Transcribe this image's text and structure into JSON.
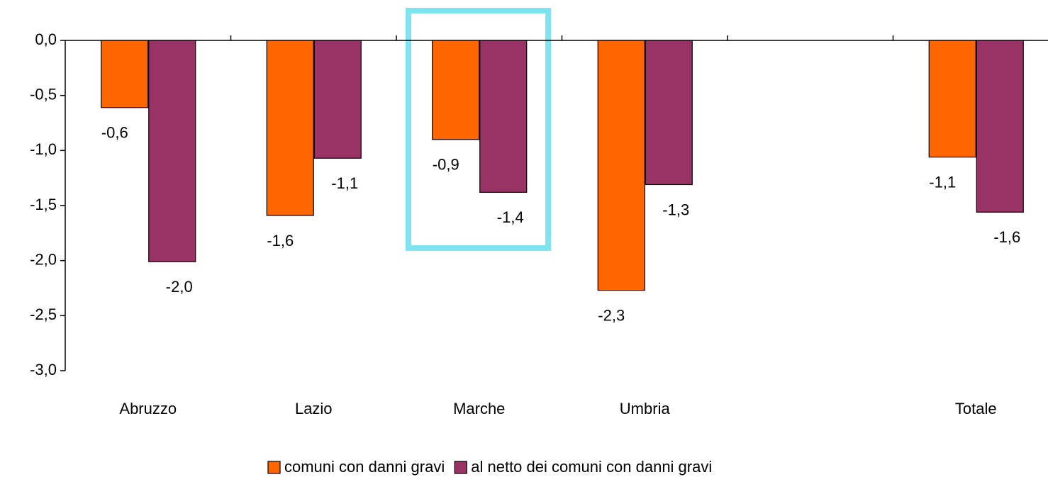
{
  "chart_data": {
    "type": "bar",
    "categories": [
      "Abruzzo",
      "Lazio",
      "Marche",
      "Umbria",
      null,
      "Totale"
    ],
    "series": [
      {
        "name": "comuni con danni gravi",
        "color": "#ff6600",
        "values": [
          -0.61,
          -1.59,
          -0.9,
          -2.27,
          null,
          -1.06
        ],
        "value_labels": [
          "-0,6",
          "-1,6",
          "-0,9",
          "-2,3",
          null,
          "-1,1"
        ]
      },
      {
        "name": "al netto dei comuni con danni gravi",
        "color": "#993366",
        "values": [
          -2.01,
          -1.07,
          -1.38,
          -1.31,
          null,
          -1.56
        ],
        "value_labels": [
          "-2,0",
          "-1,1",
          "-1,4",
          "-1,3",
          null,
          "-1,6"
        ]
      }
    ],
    "ylim": [
      -3,
      0
    ],
    "yticks": [
      {
        "value": 0,
        "label": "0,0"
      },
      {
        "value": -0.5,
        "label": "-0,5"
      },
      {
        "value": -1,
        "label": "-1,0"
      },
      {
        "value": -1.5,
        "label": "-1,5"
      },
      {
        "value": -2,
        "label": "-2,0"
      },
      {
        "value": -2.5,
        "label": "-2,5"
      },
      {
        "value": -3,
        "label": "-3,0"
      }
    ],
    "legend": "bottom"
  }
}
